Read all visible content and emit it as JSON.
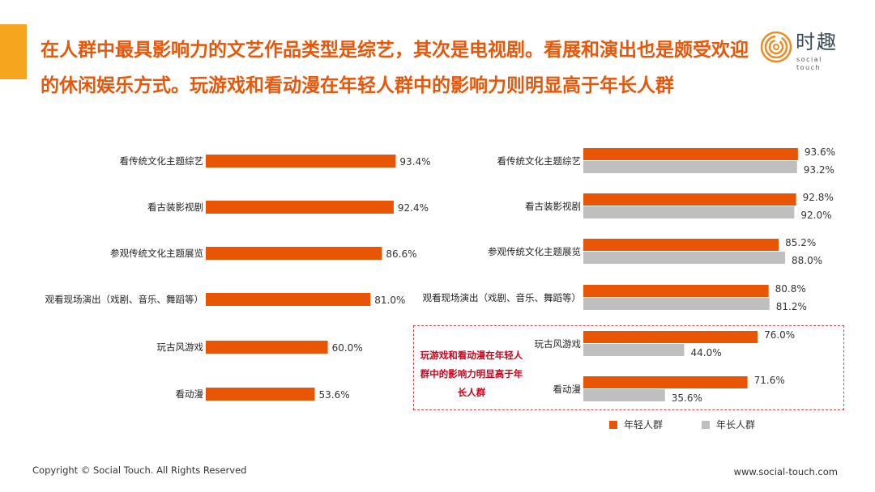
{
  "title": "在人群中最具影响力的文艺作品类型是综艺，其次是电视剧。看展和演出也是颇受欢迎的休闲娱乐方式。玩游戏和看动漫在年轻人群中的影响力则明显高于年长人群",
  "logo": {
    "cn": "时趣",
    "en": "social touch"
  },
  "colors": {
    "accent": "#F5A51E",
    "orange": "#E85504",
    "grey": "#BFBFBF",
    "title": "#E8560A",
    "note": "#D0021B"
  },
  "note": "玩游戏和看动漫在年轻人群中的影响力明显高于年长人群",
  "footer": {
    "copyright": "Copyright © Social Touch. All Rights Reserved",
    "website": "www.social-touch.com"
  },
  "chart_data": [
    {
      "type": "bar",
      "orientation": "horizontal",
      "categories": [
        "看传统文化主题综艺",
        "看古装影视剧",
        "参观传统文化主题展览",
        "观看现场演出（戏剧、音乐、舞蹈等）",
        "玩古风游戏",
        "看动漫"
      ],
      "values": [
        93.4,
        92.4,
        86.6,
        81.0,
        60.0,
        53.6
      ],
      "labels": [
        "93.4%",
        "92.4%",
        "86.6%",
        "81.0%",
        "60.0%",
        "53.6%"
      ],
      "xlim": [
        0,
        100
      ],
      "grid": false
    },
    {
      "type": "bar",
      "orientation": "horizontal",
      "categories": [
        "看传统文化主题综艺",
        "看古装影视剧",
        "参观传统文化主题展览",
        "观看现场演出（戏剧、音乐、舞蹈等）",
        "玩古风游戏",
        "看动漫"
      ],
      "series": [
        {
          "name": "年轻人群",
          "values": [
            93.6,
            92.8,
            85.2,
            80.8,
            76.0,
            71.6
          ],
          "labels": [
            "93.6%",
            "92.8%",
            "85.2%",
            "80.8%",
            "76.0%",
            "71.6%"
          ]
        },
        {
          "name": "年长人群",
          "values": [
            93.2,
            92.0,
            88.0,
            81.2,
            44.0,
            35.6
          ],
          "labels": [
            "93.2%",
            "92.0%",
            "88.0%",
            "81.2%",
            "44.0%",
            "35.6%"
          ]
        }
      ],
      "xlim": [
        0,
        100
      ],
      "legend": "bottom",
      "grid": false
    }
  ]
}
